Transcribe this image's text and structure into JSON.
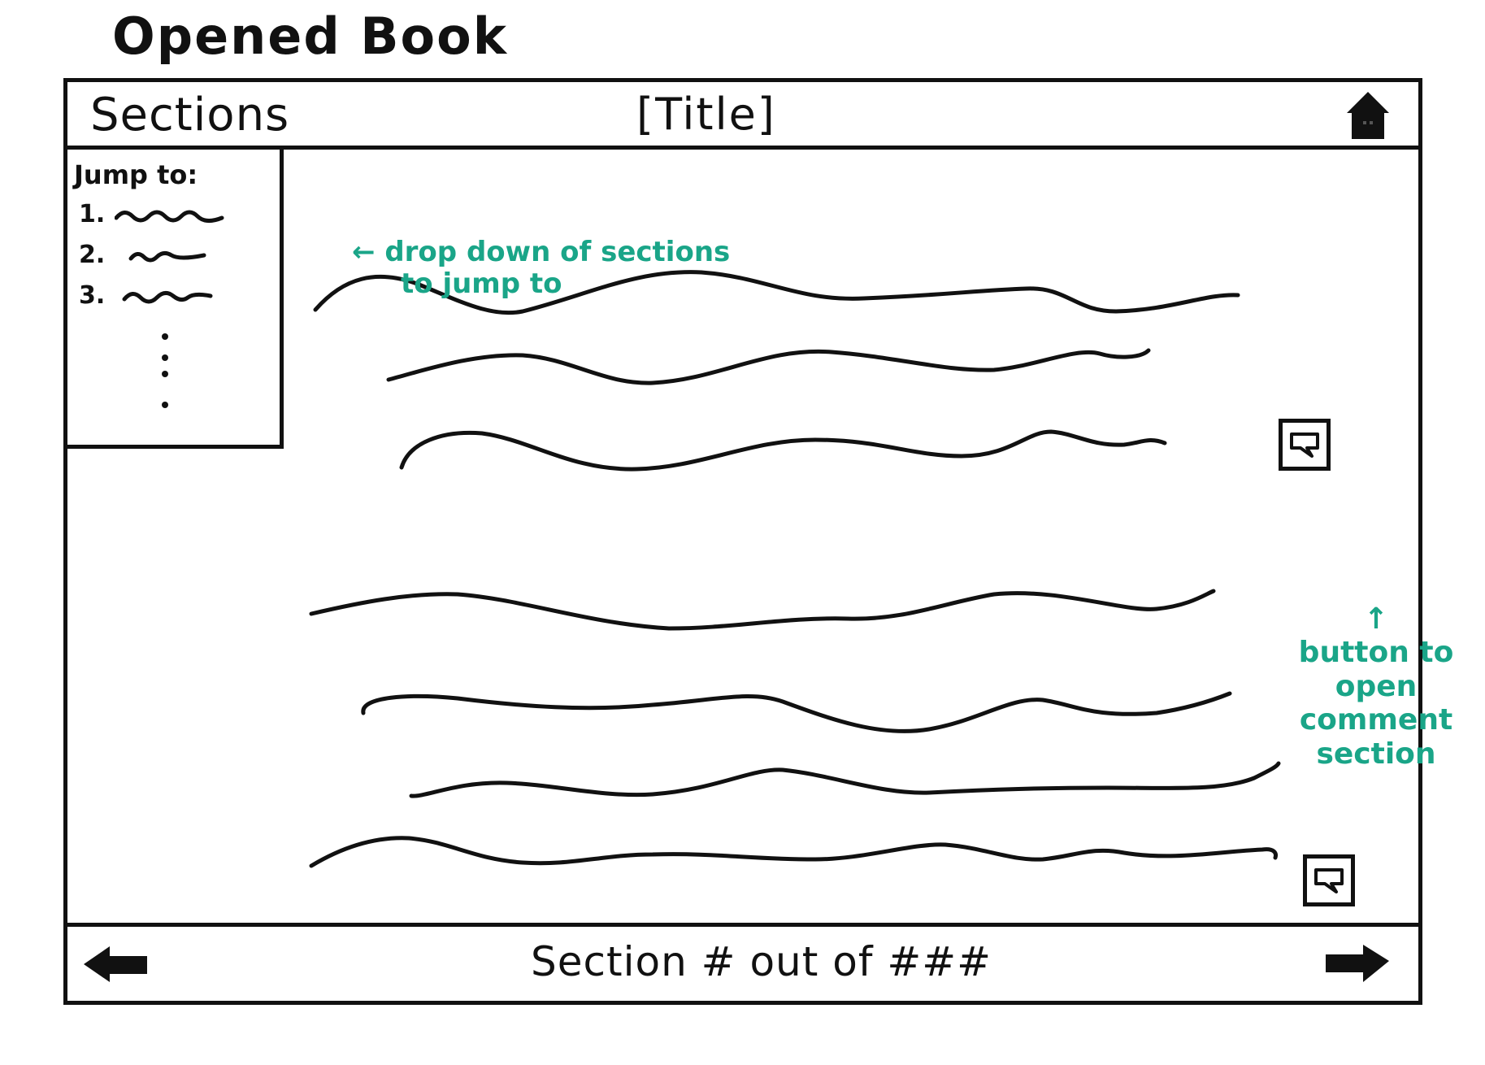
{
  "page_title": "Opened Book",
  "header": {
    "sections_label": "Sections",
    "title_placeholder": "[Title]"
  },
  "dropdown": {
    "jump_label": "Jump to:",
    "items": [
      {
        "number": "1."
      },
      {
        "number": "2."
      },
      {
        "number": "3."
      }
    ],
    "more_indicator": "⋮"
  },
  "annotations": {
    "dropdown_note_line1": "← drop down of sections",
    "dropdown_note_line2": "to jump to",
    "comment_note_arrow": "↑",
    "comment_note_line1": "button to",
    "comment_note_line2": "open",
    "comment_note_line3": "comment",
    "comment_note_line4": "section"
  },
  "footer": {
    "section_counter": "Section # out of ###"
  },
  "icons": {
    "home": "home-icon",
    "comment": "comment-icon",
    "prev": "arrow-left-icon",
    "next": "arrow-right-icon"
  },
  "colors": {
    "ink": "#111111",
    "annotation": "#1aa588"
  }
}
